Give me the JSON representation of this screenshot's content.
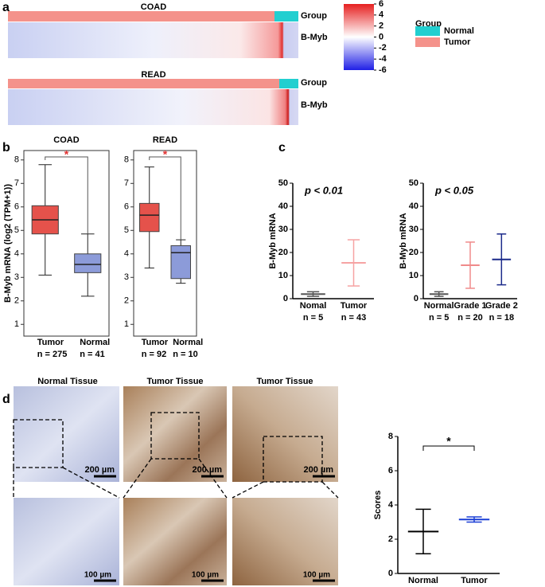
{
  "panel_labels": [
    "a",
    "b",
    "c",
    "d"
  ],
  "chart_data": [
    {
      "type": "heatmap",
      "titles": [
        "COAD",
        "READ"
      ],
      "row_labels": [
        "Group",
        "B-Myb"
      ],
      "ylim": [
        -6,
        6
      ],
      "yticks": [
        6,
        4,
        2,
        0,
        -2,
        -4,
        -6
      ],
      "legend_title": "Group",
      "series": [
        {
          "name": "Normal",
          "color": "#22cfd0"
        },
        {
          "name": "Tumor",
          "color": "#f4928b"
        }
      ]
    },
    {
      "type": "box",
      "title": "COAD",
      "ylabel": "B-Myb mRNA (log2 (TPM+1))",
      "categories": [
        "Tumor",
        "Normal"
      ],
      "n_labels": [
        "n = 275",
        "n = 41"
      ],
      "colors": [
        "#e5524b",
        "#8c9bd9"
      ],
      "medians": [
        5.45,
        3.55
      ],
      "q1": [
        4.85,
        3.2
      ],
      "q3": [
        6.05,
        4.0
      ],
      "whisker_low": [
        3.1,
        2.2
      ],
      "whisker_high": [
        7.8,
        4.85
      ],
      "ylim": [
        0.5,
        8.4
      ],
      "yticks": [
        1,
        2,
        3,
        4,
        5,
        6,
        7,
        8
      ],
      "significance": "*"
    },
    {
      "type": "box",
      "title": "READ",
      "categories": [
        "Tumor",
        "Normal"
      ],
      "n_labels": [
        "n = 92",
        "n = 10"
      ],
      "colors": [
        "#e5524b",
        "#8c9bd9"
      ],
      "medians": [
        5.65,
        4.05
      ],
      "q1": [
        4.95,
        2.95
      ],
      "q3": [
        6.15,
        4.35
      ],
      "whisker_low": [
        3.4,
        2.75
      ],
      "whisker_high": [
        7.7,
        4.6
      ],
      "ylim": [
        0.5,
        8.4
      ],
      "yticks": [
        1,
        2,
        3,
        4,
        5,
        6,
        7,
        8
      ],
      "significance": "*"
    },
    {
      "type": "dot",
      "ylabel": "B-Myb mRNA",
      "annotation": "p < 0.01",
      "categories": [
        "Nomal",
        "Tumor"
      ],
      "n_labels": [
        "n = 5",
        "n = 43"
      ],
      "colors": [
        "#555555",
        "#f6a3a3"
      ],
      "means": [
        2,
        15.5
      ],
      "errors": [
        1,
        10
      ],
      "ylim": [
        0,
        50
      ],
      "yticks": [
        0,
        10,
        20,
        30,
        40,
        50
      ]
    },
    {
      "type": "dot",
      "ylabel": "B-Myb mRNA",
      "annotation": "p < 0.05",
      "categories": [
        "Normal",
        "Grade 1",
        "Grade 2"
      ],
      "n_labels": [
        "n = 5",
        "n = 20",
        "n = 18"
      ],
      "colors": [
        "#555555",
        "#f08a8a",
        "#1b2a8a"
      ],
      "means": [
        2,
        14.5,
        17
      ],
      "errors": [
        1,
        10,
        11
      ],
      "ylim": [
        0,
        50
      ],
      "yticks": [
        0,
        10,
        20,
        30,
        40,
        50
      ]
    },
    {
      "type": "dot",
      "ylabel": "Scores",
      "significance": "*",
      "categories": [
        "Normal",
        "Tumor"
      ],
      "colors": [
        "#000000",
        "#1a3fd6"
      ],
      "means": [
        2.45,
        3.15
      ],
      "errors": [
        1.3,
        0.15
      ],
      "ylim": [
        0,
        8
      ],
      "yticks": [
        0,
        2,
        4,
        6,
        8
      ]
    }
  ],
  "images": {
    "titles": [
      "Normal Tissue",
      "Tumor Tissue",
      "Tumor Tissue"
    ],
    "scale_top": "200 µm",
    "scale_bottom": "100 µm"
  }
}
